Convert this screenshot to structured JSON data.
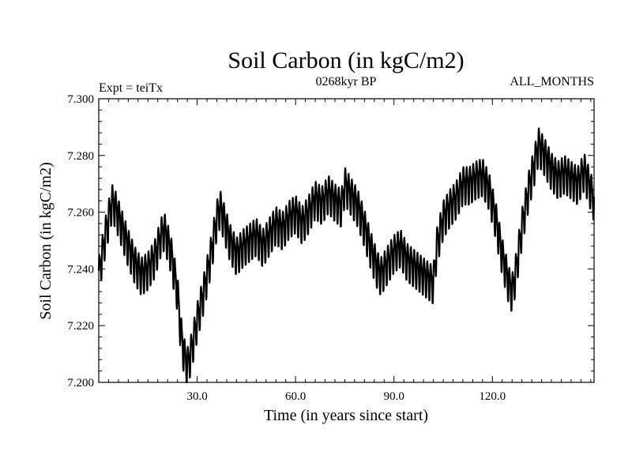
{
  "chart_data": {
    "type": "line",
    "title": "Soil Carbon (in kgC/m2)",
    "subtitle": "0268kyr BP",
    "left_label": "Expt = teiTx",
    "right_label": "ALL_MONTHS",
    "xlabel": "Time (in years since start)",
    "ylabel": "Soil Carbon (in kgC/m2)",
    "xlim": [
      0,
      151
    ],
    "ylim": [
      7.2,
      7.3
    ],
    "x_ticks": [
      30,
      60,
      90,
      120
    ],
    "x_tick_labels": [
      "30.0",
      "60.0",
      "90.0",
      "120.0"
    ],
    "y_ticks": [
      7.2,
      7.22,
      7.24,
      7.26,
      7.28,
      7.3
    ],
    "y_tick_labels": [
      "7.200",
      "7.220",
      "7.240",
      "7.260",
      "7.280",
      "7.300"
    ],
    "series": [
      {
        "name": "Soil Carbon",
        "annual_cycle_amplitude": 0.006,
        "x": [
          0,
          1,
          2,
          3,
          4,
          5,
          7,
          9,
          11,
          13,
          15,
          17,
          19,
          20,
          22,
          24,
          25,
          26,
          27,
          28,
          30,
          32,
          34,
          36,
          37,
          38,
          40,
          42,
          44,
          46,
          48,
          50,
          52,
          54,
          56,
          58,
          60,
          62,
          64,
          66,
          68,
          70,
          72,
          74,
          75,
          77,
          79,
          81,
          83,
          85,
          86,
          88,
          90,
          92,
          94,
          96,
          98,
          100,
          102,
          103,
          105,
          107,
          109,
          111,
          113,
          115,
          117,
          119,
          121,
          123,
          125,
          126,
          127,
          129,
          131,
          133,
          134,
          136,
          138,
          140,
          142,
          144,
          146,
          148,
          150,
          151
        ],
        "y": [
          7.238,
          7.245,
          7.252,
          7.258,
          7.264,
          7.262,
          7.255,
          7.248,
          7.242,
          7.238,
          7.24,
          7.244,
          7.252,
          7.254,
          7.246,
          7.232,
          7.218,
          7.21,
          7.206,
          7.21,
          7.222,
          7.232,
          7.244,
          7.258,
          7.262,
          7.258,
          7.25,
          7.245,
          7.248,
          7.25,
          7.252,
          7.248,
          7.252,
          7.256,
          7.254,
          7.258,
          7.26,
          7.256,
          7.26,
          7.265,
          7.263,
          7.267,
          7.264,
          7.262,
          7.27,
          7.266,
          7.262,
          7.255,
          7.247,
          7.24,
          7.238,
          7.242,
          7.246,
          7.248,
          7.243,
          7.241,
          7.239,
          7.237,
          7.235,
          7.248,
          7.258,
          7.262,
          7.265,
          7.27,
          7.27,
          7.272,
          7.273,
          7.268,
          7.258,
          7.245,
          7.235,
          7.232,
          7.238,
          7.255,
          7.268,
          7.278,
          7.284,
          7.28,
          7.275,
          7.272,
          7.274,
          7.272,
          7.27,
          7.275,
          7.268,
          7.264
        ]
      }
    ]
  }
}
